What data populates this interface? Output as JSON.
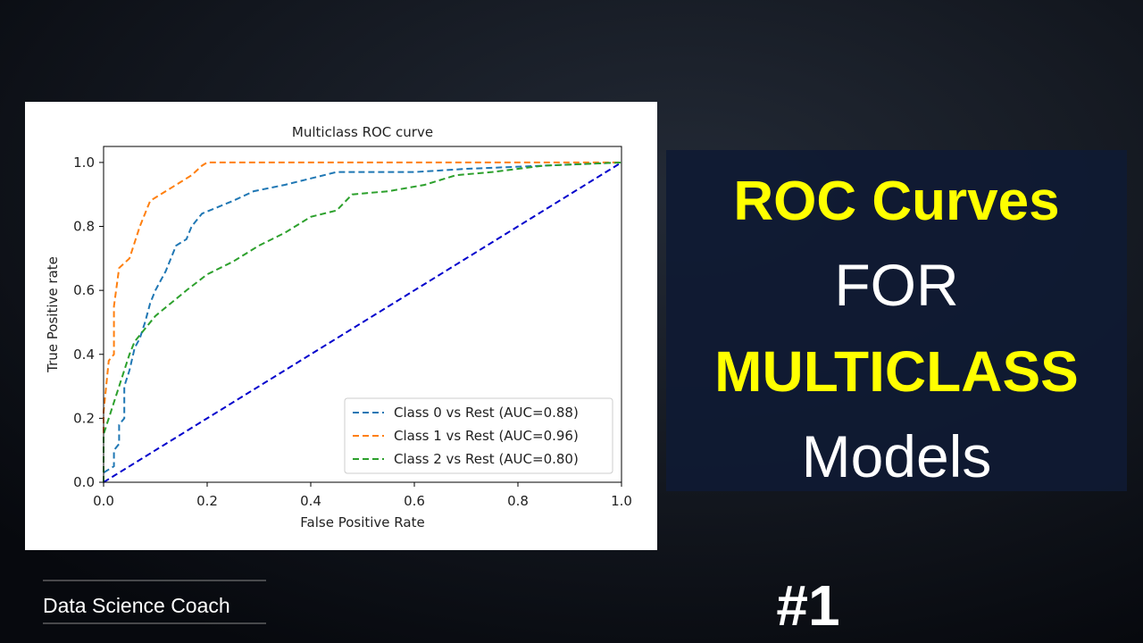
{
  "chart_data": {
    "type": "line",
    "title": "Multiclass ROC curve",
    "xlabel": "False Positive Rate",
    "ylabel": "True Positive rate",
    "xlim": [
      0,
      1
    ],
    "ylim": [
      0,
      1.05
    ],
    "xticks": [
      {
        "value": 0,
        "label": "0.0"
      },
      0.2,
      0.4,
      0.6,
      0.8,
      {
        "value": 1,
        "label": "1.0"
      }
    ],
    "yticks": [
      {
        "value": 0,
        "label": "0.0"
      },
      0.2,
      0.4,
      0.6,
      0.8,
      {
        "value": 1,
        "label": "1.0"
      }
    ],
    "legend": "lower right",
    "diagonal": {
      "x": [
        0,
        1
      ],
      "values": [
        0,
        1
      ],
      "color": "#0000cc"
    },
    "series": [
      {
        "name": "Class 0 vs Rest (AUC=0.88)",
        "color": "#1f77b4",
        "x": [
          0,
          0,
          0.02,
          0.02,
          0.03,
          0.03,
          0.04,
          0.04,
          0.05,
          0.06,
          0.07,
          0.08,
          0.09,
          0.1,
          0.11,
          0.12,
          0.13,
          0.14,
          0.16,
          0.17,
          0.19,
          0.22,
          0.25,
          0.29,
          0.35,
          0.4,
          0.45,
          0.6,
          0.7,
          0.85,
          1
        ],
        "values": [
          0,
          0.03,
          0.05,
          0.1,
          0.12,
          0.18,
          0.2,
          0.3,
          0.35,
          0.42,
          0.45,
          0.5,
          0.56,
          0.6,
          0.63,
          0.66,
          0.7,
          0.74,
          0.76,
          0.8,
          0.84,
          0.86,
          0.88,
          0.91,
          0.93,
          0.95,
          0.97,
          0.97,
          0.98,
          0.99,
          1
        ]
      },
      {
        "name": "Class 1 vs Rest (AUC=0.96)",
        "color": "#ff7f0e",
        "x": [
          0,
          0,
          0.01,
          0.02,
          0.02,
          0.03,
          0.05,
          0.06,
          0.07,
          0.08,
          0.09,
          0.11,
          0.13,
          0.15,
          0.17,
          0.19,
          0.2,
          1
        ],
        "values": [
          0,
          0.22,
          0.38,
          0.4,
          0.55,
          0.67,
          0.7,
          0.75,
          0.8,
          0.84,
          0.88,
          0.9,
          0.92,
          0.94,
          0.96,
          0.99,
          1,
          1
        ]
      },
      {
        "name": "Class 2 vs Rest (AUC=0.80)",
        "color": "#2ca02c",
        "x": [
          0,
          0,
          0.01,
          0.02,
          0.03,
          0.04,
          0.05,
          0.06,
          0.08,
          0.1,
          0.13,
          0.16,
          0.2,
          0.25,
          0.3,
          0.35,
          0.4,
          0.45,
          0.48,
          0.55,
          0.62,
          0.68,
          0.75,
          0.85,
          1
        ],
        "values": [
          0,
          0.15,
          0.2,
          0.25,
          0.3,
          0.35,
          0.4,
          0.44,
          0.48,
          0.52,
          0.56,
          0.6,
          0.65,
          0.69,
          0.74,
          0.78,
          0.83,
          0.85,
          0.9,
          0.91,
          0.93,
          0.96,
          0.97,
          0.99,
          1
        ]
      }
    ]
  },
  "headline": [
    {
      "text": "ROC Curves",
      "color": "#ffff00"
    },
    {
      "text": "FOR",
      "color": "#ffffff"
    },
    {
      "text": "MULTICLASS",
      "color": "#ffff00"
    },
    {
      "text": "Models",
      "color": "#ffffff"
    }
  ],
  "episode": "#1",
  "channel": "Data Science Coach"
}
